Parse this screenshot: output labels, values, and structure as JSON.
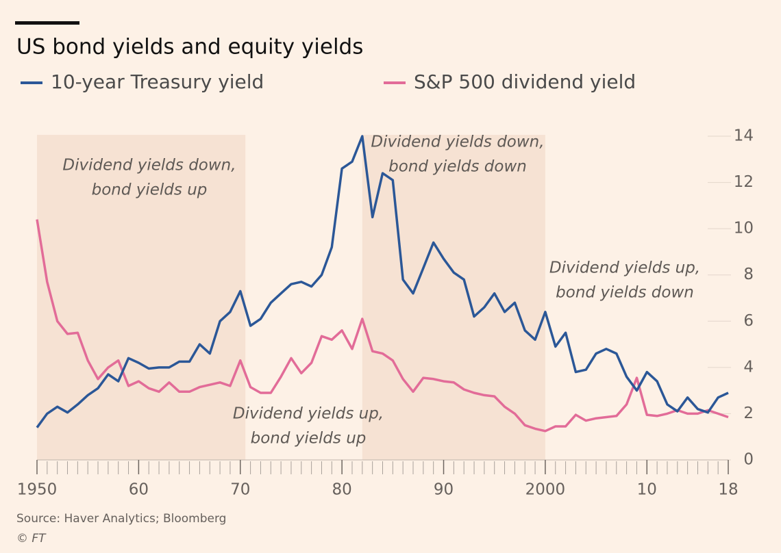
{
  "chart_data": {
    "type": "line",
    "title": "US bond yields and equity yields",
    "source": "Source: Haver Analytics; Bloomberg",
    "credit": "© FT",
    "x": [
      1950,
      1951,
      1952,
      1953,
      1954,
      1955,
      1956,
      1957,
      1958,
      1959,
      1960,
      1961,
      1962,
      1963,
      1964,
      1965,
      1966,
      1967,
      1968,
      1969,
      1970,
      1971,
      1972,
      1973,
      1974,
      1975,
      1976,
      1977,
      1978,
      1979,
      1980,
      1981,
      1982,
      1983,
      1984,
      1985,
      1986,
      1987,
      1988,
      1989,
      1990,
      1991,
      1992,
      1993,
      1994,
      1995,
      1996,
      1997,
      1998,
      1999,
      2000,
      2001,
      2002,
      2003,
      2004,
      2005,
      2006,
      2007,
      2008,
      2009,
      2010,
      2011,
      2012,
      2013,
      2014,
      2015,
      2016,
      2017,
      2018
    ],
    "series": [
      {
        "name": "10-year Treasury yield",
        "color": "#2b5797",
        "values": [
          1.4,
          2.0,
          2.3,
          2.05,
          2.4,
          2.8,
          3.1,
          3.7,
          3.4,
          4.4,
          4.2,
          3.95,
          4.0,
          4.0,
          4.25,
          4.25,
          5.0,
          4.6,
          6.0,
          6.4,
          7.3,
          5.8,
          6.1,
          6.8,
          7.2,
          7.6,
          7.7,
          7.5,
          8.0,
          9.2,
          12.6,
          12.9,
          14.0,
          10.5,
          12.4,
          12.1,
          7.8,
          7.2,
          8.3,
          9.4,
          8.7,
          8.1,
          7.8,
          6.2,
          6.6,
          7.2,
          6.4,
          6.8,
          5.6,
          5.2,
          6.4,
          4.9,
          5.5,
          3.8,
          3.9,
          4.6,
          4.8,
          4.6,
          3.6,
          3.0,
          3.8,
          3.4,
          2.4,
          2.1,
          2.7,
          2.2,
          2.05,
          2.7,
          2.9
        ]
      },
      {
        "name": "S&P 500 dividend yield",
        "color": "#e26c98",
        "values": [
          10.4,
          7.7,
          6.0,
          5.45,
          5.5,
          4.3,
          3.5,
          4.0,
          4.3,
          3.2,
          3.4,
          3.1,
          2.95,
          3.35,
          2.95,
          2.95,
          3.15,
          3.25,
          3.35,
          3.2,
          4.3,
          3.15,
          2.9,
          2.9,
          3.6,
          4.4,
          3.75,
          4.2,
          5.35,
          5.2,
          5.6,
          4.8,
          6.1,
          4.7,
          4.6,
          4.3,
          3.5,
          2.95,
          3.55,
          3.5,
          3.4,
          3.35,
          3.05,
          2.9,
          2.8,
          2.75,
          2.3,
          2.0,
          1.5,
          1.35,
          1.25,
          1.45,
          1.45,
          1.95,
          1.7,
          1.8,
          1.85,
          1.9,
          2.4,
          3.55,
          1.95,
          1.9,
          2.0,
          2.15,
          2.0,
          2.0,
          2.15,
          2.0,
          1.85
        ]
      }
    ],
    "xlim": [
      1950,
      2018
    ],
    "xticks": [
      {
        "value": 1950,
        "label": "1950"
      },
      {
        "value": 1960,
        "label": "60"
      },
      {
        "value": 1970,
        "label": "70"
      },
      {
        "value": 1980,
        "label": "80"
      },
      {
        "value": 1990,
        "label": "90"
      },
      {
        "value": 2000,
        "label": "2000"
      },
      {
        "value": 2010,
        "label": "10"
      },
      {
        "value": 2018,
        "label": "18"
      }
    ],
    "xticks_minor": [
      1950,
      1951,
      1952,
      1953,
      1954,
      1955,
      1956,
      1957,
      1958,
      1959,
      1960,
      1961,
      1962,
      1963,
      1964,
      1965,
      1966,
      1967,
      1968,
      1969,
      1970,
      1971,
      1972,
      1973,
      1974,
      1975,
      1976,
      1977,
      1978,
      1979,
      1980,
      1981,
      1982,
      1983,
      1984,
      1985,
      1986,
      1987,
      1988,
      1989,
      1990,
      1991,
      1992,
      1993,
      1994,
      1995,
      1996,
      1997,
      1998,
      1999,
      2000,
      2001,
      2002,
      2003,
      2004,
      2005,
      2006,
      2007,
      2008,
      2009,
      2010,
      2011,
      2012,
      2013,
      2014,
      2015,
      2016,
      2017,
      2018
    ],
    "ylim": [
      0,
      14
    ],
    "yticks": [
      0,
      2,
      4,
      6,
      8,
      10,
      12,
      14
    ],
    "y_axis_side": "right",
    "shaded_regions": [
      [
        1950,
        1970.5
      ],
      [
        1982,
        2000
      ]
    ],
    "annotations": [
      {
        "lines": [
          "Dividend yields down,",
          "bond yields up"
        ]
      },
      {
        "lines": [
          "Dividend yields down,",
          "bond yields down"
        ]
      },
      {
        "lines": [
          "Dividend yields up,",
          "bond yields down"
        ]
      },
      {
        "lines": [
          "Dividend yields up,",
          "bond yields up"
        ]
      }
    ]
  }
}
